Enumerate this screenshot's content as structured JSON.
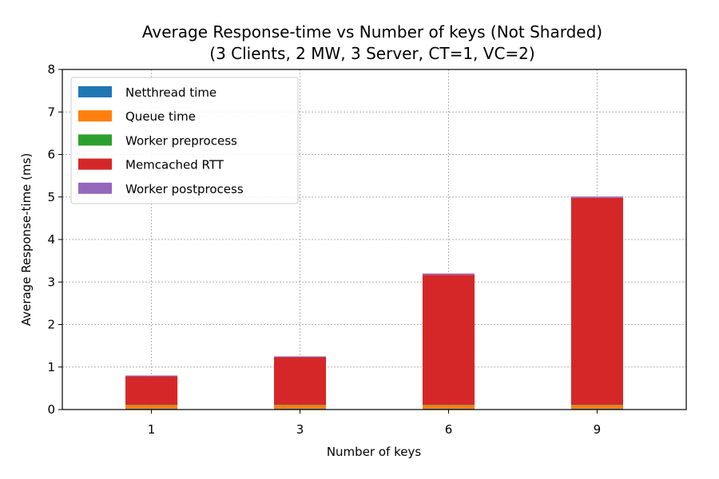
{
  "chart_data": {
    "type": "bar",
    "stacked": true,
    "title": "Average Response-time vs Number of keys (Not Sharded)",
    "subtitle": "(3 Clients, 2 MW, 3 Server, CT=1, VC=2)",
    "xlabel": "Number of keys",
    "ylabel": "Average Response-time (ms)",
    "categories": [
      "1",
      "3",
      "6",
      "9"
    ],
    "yticks": [
      "0",
      "1",
      "2",
      "3",
      "4",
      "5",
      "6",
      "7",
      "8"
    ],
    "ylim": [
      0,
      8
    ],
    "grid": true,
    "legend_position": "top-left",
    "series": [
      {
        "name": "Netthread time",
        "color": "#1f77b4",
        "values": [
          0.02,
          0.02,
          0.02,
          0.02
        ]
      },
      {
        "name": "Queue time",
        "color": "#ff7f0e",
        "values": [
          0.08,
          0.08,
          0.08,
          0.08
        ]
      },
      {
        "name": "Worker preprocess",
        "color": "#2ca02c",
        "values": [
          0.01,
          0.01,
          0.01,
          0.01
        ]
      },
      {
        "name": "Memcached RTT",
        "color": "#d62728",
        "values": [
          0.67,
          1.12,
          3.06,
          4.87
        ]
      },
      {
        "name": "Worker postprocess",
        "color": "#9467bd",
        "values": [
          0.02,
          0.02,
          0.03,
          0.03
        ]
      }
    ]
  }
}
